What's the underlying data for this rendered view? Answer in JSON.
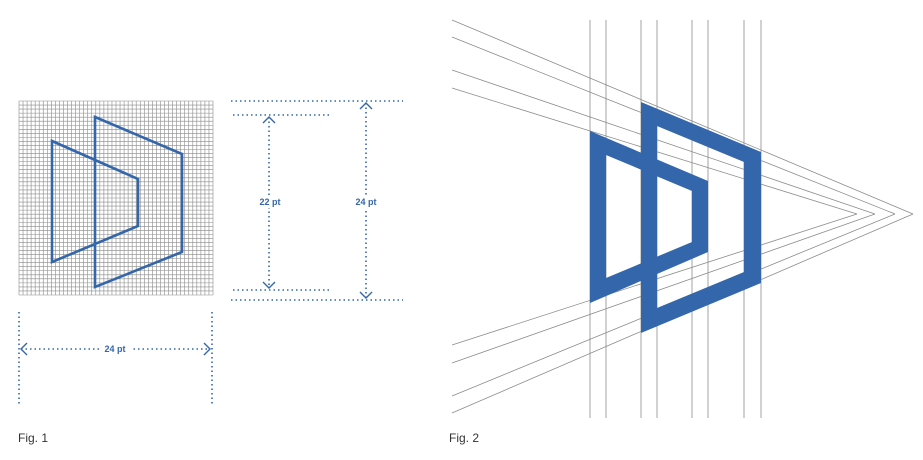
{
  "colors": {
    "accent": "#3366AA",
    "grid": "#8A8A8A",
    "construction": "#8C8C8C",
    "caption": "#333333"
  },
  "figure1": {
    "caption": "Fig. 1",
    "width_label": "24 pt",
    "inner_height_label": "22 pt",
    "outer_height_label": "24 pt"
  },
  "figure2": {
    "caption": "Fig. 2"
  }
}
